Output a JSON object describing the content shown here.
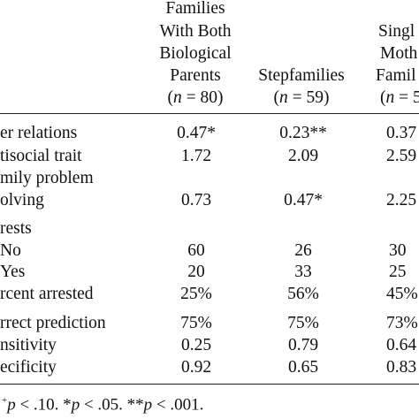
{
  "table": {
    "headers": {
      "col1": [
        "Families",
        "With Both",
        "Biological",
        "Parents"
      ],
      "col1_n_var": "n",
      "col1_n_val": " = 80)",
      "col2": "Stepfamilies",
      "col2_n_var": "n",
      "col2_n_val": " = 59)",
      "col3": [
        "Singl",
        "Moth",
        "Famil"
      ],
      "col3_n_var": "n",
      "col3_n_val": " = 5"
    },
    "rows": [
      {
        "label": "er relations",
        "c1": "0.47*",
        "c2": "0.23**",
        "c3": "0.37"
      },
      {
        "label": "tisocial trait",
        "c1": "1.72",
        "c2": "2.09",
        "c3": "2.59"
      },
      {
        "label": "mily problem",
        "c1": "",
        "c2": "",
        "c3": ""
      },
      {
        "label": "olving",
        "c1": "0.73",
        "c2": "0.47*",
        "c3": "2.25"
      },
      {
        "label": "rests",
        "c1": "",
        "c2": "",
        "c3": ""
      },
      {
        "label": "No",
        "c1": "60",
        "c2": "26",
        "c3": "30"
      },
      {
        "label": "Yes",
        "c1": "20",
        "c2": "33",
        "c3": "25"
      },
      {
        "label": "rcent arrested",
        "c1": "25%",
        "c2": "56%",
        "c3": "45%"
      },
      {
        "label": "rrect prediction",
        "c1": "75%",
        "c2": "75%",
        "c3": "73%"
      },
      {
        "label": "nsitivity",
        "c1": "0.25",
        "c2": "0.79",
        "c3": "0.64"
      },
      {
        "label": "ecificity",
        "c1": "0.92",
        "c2": "0.65",
        "c3": "0.83"
      }
    ],
    "footnote": {
      "m1": "+",
      "p1": "p",
      "t1": " < .10.   *",
      "p2": "p",
      "t2": " < .05.   **",
      "p3": "p",
      "t3": " < .001."
    }
  }
}
